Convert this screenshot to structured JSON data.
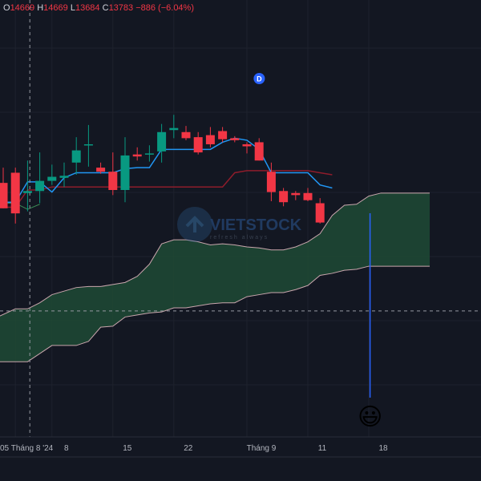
{
  "ohlc": {
    "o_label": "O",
    "o_value": "14669",
    "h_label": "H",
    "h_value": "14669",
    "l_label": "L",
    "l_value": "13684",
    "c_label": "C",
    "c_value": "13783",
    "change": "−886 (−6.04%)"
  },
  "colors": {
    "background": "#131722",
    "up": "#089981",
    "down": "#f23645",
    "tenkan": "#2196f3",
    "kijun": "#8e1c2b",
    "cloud_fill": "#1e4a35",
    "span_line": "#c9a6ad",
    "marker": "#2962ff"
  },
  "watermark": {
    "brand": "VIETSTOCK",
    "tagline": "refresh always"
  },
  "marker_badge": "D",
  "chart_data": {
    "type": "candlestick",
    "title": "",
    "xlabel": "",
    "ylabel": "",
    "ylim": [
      12000,
      16300
    ],
    "grid": true,
    "x_ticks": [
      {
        "label": "05 Tháng 8 '24",
        "index": 1
      },
      {
        "label": "8",
        "index": 4
      },
      {
        "label": "15",
        "index": 9
      },
      {
        "label": "22",
        "index": 14
      },
      {
        "label": "Tháng 9",
        "index": 20
      },
      {
        "label": "11",
        "index": 25
      },
      {
        "label": "18",
        "index": 30
      }
    ],
    "crosshair_x_index": 1,
    "crosshair_price": 13240,
    "candles": [
      {
        "i": 0,
        "o": 14500,
        "h": 14650,
        "l": 14250,
        "c": 14250
      },
      {
        "i": 1,
        "o": 14600,
        "h": 14650,
        "l": 14100,
        "c": 14200
      },
      {
        "i": 2,
        "o": 14400,
        "h": 14720,
        "l": 14220,
        "c": 14420
      },
      {
        "i": 3,
        "o": 14420,
        "h": 14800,
        "l": 14300,
        "c": 14520
      },
      {
        "i": 4,
        "o": 14520,
        "h": 14680,
        "l": 14480,
        "c": 14560
      },
      {
        "i": 5,
        "o": 14550,
        "h": 14700,
        "l": 14460,
        "c": 14570
      },
      {
        "i": 6,
        "o": 14700,
        "h": 14950,
        "l": 14580,
        "c": 14820
      },
      {
        "i": 7,
        "o": 14880,
        "h": 15070,
        "l": 14660,
        "c": 14880
      },
      {
        "i": 8,
        "o": 14650,
        "h": 14700,
        "l": 14590,
        "c": 14610
      },
      {
        "i": 9,
        "o": 14610,
        "h": 14800,
        "l": 14380,
        "c": 14430
      },
      {
        "i": 10,
        "o": 14430,
        "h": 14950,
        "l": 14310,
        "c": 14770
      },
      {
        "i": 11,
        "o": 14780,
        "h": 14850,
        "l": 14720,
        "c": 14760
      },
      {
        "i": 12,
        "o": 14790,
        "h": 14870,
        "l": 14710,
        "c": 14790
      },
      {
        "i": 13,
        "o": 14810,
        "h": 15080,
        "l": 14700,
        "c": 15000
      },
      {
        "i": 14,
        "o": 15020,
        "h": 15170,
        "l": 14940,
        "c": 15040
      },
      {
        "i": 15,
        "o": 15000,
        "h": 15060,
        "l": 14920,
        "c": 14940
      },
      {
        "i": 16,
        "o": 14950,
        "h": 15000,
        "l": 14780,
        "c": 14800
      },
      {
        "i": 17,
        "o": 14970,
        "h": 15050,
        "l": 14850,
        "c": 14880
      },
      {
        "i": 18,
        "o": 15010,
        "h": 15050,
        "l": 14900,
        "c": 14930
      },
      {
        "i": 19,
        "o": 14940,
        "h": 14960,
        "l": 14900,
        "c": 14920
      },
      {
        "i": 20,
        "o": 14880,
        "h": 14900,
        "l": 14790,
        "c": 14860
      },
      {
        "i": 21,
        "o": 14900,
        "h": 14940,
        "l": 14720,
        "c": 14720
      },
      {
        "i": 22,
        "o": 14610,
        "h": 14700,
        "l": 14320,
        "c": 14410
      },
      {
        "i": 23,
        "o": 14420,
        "h": 14450,
        "l": 14270,
        "c": 14310
      },
      {
        "i": 24,
        "o": 14400,
        "h": 14420,
        "l": 14330,
        "c": 14380
      },
      {
        "i": 25,
        "o": 14400,
        "h": 14450,
        "l": 14320,
        "c": 14330
      },
      {
        "i": 26,
        "o": 14300,
        "h": 14350,
        "l": 14100,
        "c": 14110
      }
    ],
    "tenkan_sen": [
      [
        0,
        14310
      ],
      [
        1,
        14310
      ],
      [
        2,
        14510
      ],
      [
        3,
        14510
      ],
      [
        4,
        14410
      ],
      [
        5,
        14550
      ],
      [
        6,
        14600
      ],
      [
        7,
        14600
      ],
      [
        8,
        14600
      ],
      [
        9,
        14600
      ],
      [
        10,
        14640
      ],
      [
        11,
        14650
      ],
      [
        12,
        14650
      ],
      [
        13,
        14830
      ],
      [
        14,
        14830
      ],
      [
        15,
        14830
      ],
      [
        16,
        14830
      ],
      [
        17,
        14830
      ],
      [
        18,
        14900
      ],
      [
        19,
        14940
      ],
      [
        20,
        14920
      ],
      [
        21,
        14830
      ],
      [
        22,
        14600
      ],
      [
        23,
        14600
      ],
      [
        24,
        14600
      ],
      [
        25,
        14600
      ],
      [
        26,
        14480
      ],
      [
        27,
        14450
      ]
    ],
    "kijun_sen": [
      [
        0,
        14260
      ],
      [
        1,
        14260
      ],
      [
        2,
        14430
      ],
      [
        3,
        14430
      ],
      [
        4,
        14460
      ],
      [
        5,
        14460
      ],
      [
        6,
        14460
      ],
      [
        7,
        14460
      ],
      [
        8,
        14460
      ],
      [
        9,
        14460
      ],
      [
        10,
        14460
      ],
      [
        11,
        14460
      ],
      [
        12,
        14460
      ],
      [
        13,
        14460
      ],
      [
        14,
        14460
      ],
      [
        15,
        14460
      ],
      [
        16,
        14460
      ],
      [
        17,
        14460
      ],
      [
        18,
        14460
      ],
      [
        19,
        14600
      ],
      [
        20,
        14620
      ],
      [
        21,
        14620
      ],
      [
        22,
        14620
      ],
      [
        23,
        14620
      ],
      [
        24,
        14620
      ],
      [
        25,
        14620
      ],
      [
        26,
        14600
      ],
      [
        27,
        14580
      ]
    ],
    "chikou_span": [
      [
        0,
        14300
      ],
      [
        1,
        14300
      ],
      [
        2,
        14240
      ],
      [
        3,
        14290
      ]
    ],
    "senkou_span_a": [
      [
        -1,
        13150
      ],
      [
        1,
        13260
      ],
      [
        2,
        13260
      ],
      [
        3,
        13320
      ],
      [
        4,
        13400
      ],
      [
        6,
        13470
      ],
      [
        7,
        13480
      ],
      [
        8,
        13480
      ],
      [
        9,
        13500
      ],
      [
        10,
        13520
      ],
      [
        11,
        13580
      ],
      [
        12,
        13700
      ],
      [
        13,
        13900
      ],
      [
        14,
        13940
      ],
      [
        15,
        13940
      ],
      [
        16,
        13920
      ],
      [
        17,
        13890
      ],
      [
        18,
        13900
      ],
      [
        19,
        13890
      ],
      [
        20,
        13870
      ],
      [
        21,
        13860
      ],
      [
        22,
        13840
      ],
      [
        23,
        13840
      ],
      [
        24,
        13870
      ],
      [
        25,
        13920
      ],
      [
        26,
        14000
      ],
      [
        27,
        14180
      ],
      [
        28,
        14280
      ],
      [
        29,
        14290
      ],
      [
        30,
        14370
      ],
      [
        31,
        14400
      ],
      [
        33,
        14400
      ],
      [
        35,
        14400
      ]
    ],
    "senkou_span_b": [
      [
        -1,
        12740
      ],
      [
        1,
        12740
      ],
      [
        2,
        12740
      ],
      [
        3,
        12820
      ],
      [
        4,
        12900
      ],
      [
        6,
        12900
      ],
      [
        7,
        12940
      ],
      [
        8,
        13080
      ],
      [
        9,
        13090
      ],
      [
        10,
        13180
      ],
      [
        11,
        13200
      ],
      [
        12,
        13220
      ],
      [
        13,
        13230
      ],
      [
        14,
        13270
      ],
      [
        15,
        13270
      ],
      [
        16,
        13290
      ],
      [
        17,
        13310
      ],
      [
        18,
        13320
      ],
      [
        19,
        13320
      ],
      [
        20,
        13380
      ],
      [
        21,
        13400
      ],
      [
        22,
        13420
      ],
      [
        23,
        13420
      ],
      [
        24,
        13450
      ],
      [
        25,
        13490
      ],
      [
        26,
        13590
      ],
      [
        27,
        13610
      ],
      [
        28,
        13640
      ],
      [
        29,
        13650
      ],
      [
        30,
        13680
      ],
      [
        31,
        13680
      ],
      [
        33,
        13680
      ],
      [
        35,
        13680
      ]
    ],
    "marker_d_index": 22,
    "emoji_marker_index": 28,
    "emoji": "😃"
  }
}
